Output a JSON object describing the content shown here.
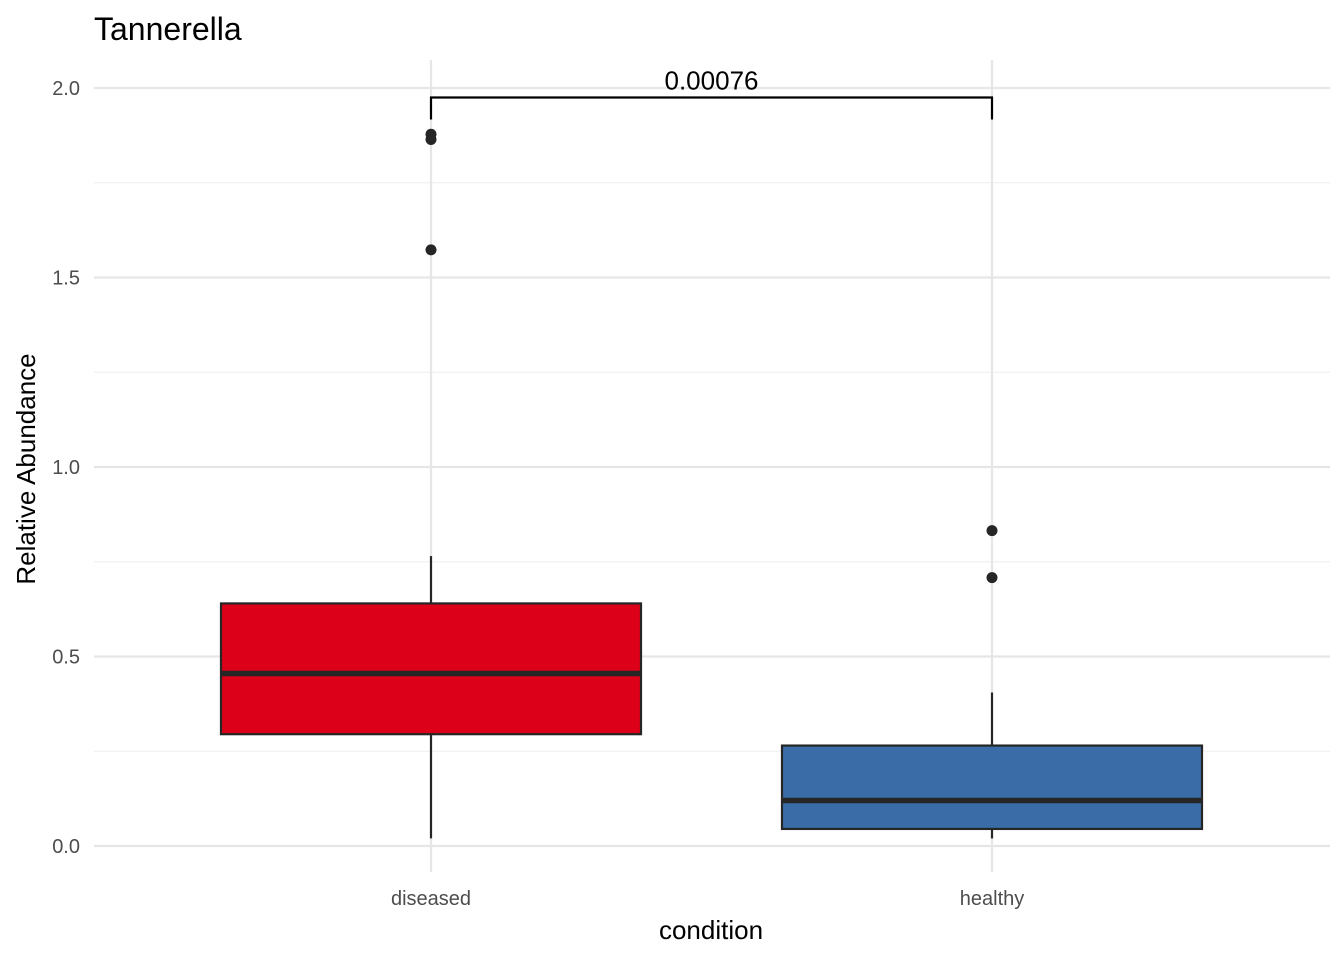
{
  "chart_data": {
    "type": "box",
    "title": "Tannerella",
    "xlabel": "condition",
    "ylabel": "Relative Abundance",
    "ylim": [
      -0.07,
      2.07
    ],
    "y_ticks": [
      0.0,
      0.5,
      1.0,
      1.5,
      2.0
    ],
    "y_tick_labels": [
      "0.0",
      "0.5",
      "1.0",
      "1.5",
      "2.0"
    ],
    "y_minor_ticks": [
      0.25,
      0.75,
      1.25,
      1.75
    ],
    "grid": true,
    "legend": "none",
    "categories": [
      "diseased",
      "healthy"
    ],
    "boxes": [
      {
        "category": "diseased",
        "color": "#dc0019",
        "whisker_low": 0.02,
        "q1": 0.295,
        "median": 0.455,
        "q3": 0.64,
        "whisker_high": 0.765,
        "outliers": [
          1.878,
          1.864,
          1.573
        ]
      },
      {
        "category": "healthy",
        "color": "#3a6da7",
        "whisker_low": 0.02,
        "q1": 0.045,
        "median": 0.12,
        "q3": 0.265,
        "whisker_high": 0.405,
        "outliers": [
          0.832,
          0.708
        ]
      }
    ],
    "annotations": [
      {
        "type": "significance-bracket",
        "from": "diseased",
        "to": "healthy",
        "y": 1.975,
        "label": "0.00076"
      }
    ]
  }
}
